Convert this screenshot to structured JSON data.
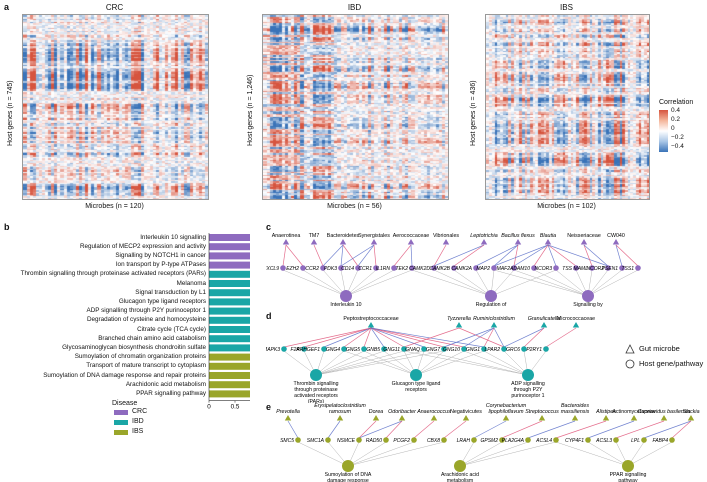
{
  "panel_a": {
    "letter": "a",
    "heatmaps": [
      {
        "title": "CRC",
        "ylabel": "Host genes (n = 745)",
        "xlabel": "Microbes (n = 120)",
        "seed": 11
      },
      {
        "title": "IBD",
        "ylabel": "Host genes (n = 1,246)",
        "xlabel": "Microbes (n = 56)",
        "seed": 29
      },
      {
        "title": "IBS",
        "ylabel": "Host genes (n = 436)",
        "xlabel": "Microbes (n = 102)",
        "seed": 47
      }
    ],
    "legend": {
      "title": "Correlation",
      "ticks": [
        "0.4",
        "0.2",
        "0",
        "−0.2",
        "−0.4"
      ]
    }
  },
  "panel_b": {
    "letter": "b",
    "chart_data": {
      "type": "bar",
      "orientation": "horizontal",
      "xlabel": "−log10(q-value)",
      "xticks": [
        "0",
        "0.5",
        "1.0",
        "1.5"
      ],
      "xlim": [
        0,
        1.75
      ],
      "categories": [
        "Interleukin 10 signalling",
        "Regulation of MECP2 expression and activity",
        "Signalling by NOTCH1 in cancer",
        "Ion transport by P-type ATPases",
        "Thrombin signalling through proteinase activated receptors (PARs)",
        "Melanoma",
        "Signal transduction by L1",
        "Glucagon type ligand receptors",
        "ADP signalling through P2Y purinoceptor 1",
        "Degradation of cysteine and homocysteine",
        "Citrate cycle (TCA cycle)",
        "Branched chain amino acid catabolism",
        "Glycosaminoglycan biosynthesis chondroitin sulfate",
        "Sumoylation of chromatin organization proteins",
        "Transport of mature transcript to cytoplasm",
        "Sumoylation of DNA damage response and repair proteins",
        "Arachidonic acid metabolism",
        "PPAR signalling pathway"
      ],
      "values": [
        1.45,
        1.45,
        1.45,
        1.45,
        1.6,
        1.4,
        1.35,
        1.35,
        1.35,
        1.35,
        1.35,
        1.35,
        1.35,
        1.75,
        1.65,
        1.6,
        1.6,
        1.55
      ],
      "groups": [
        "CRC",
        "CRC",
        "CRC",
        "CRC",
        "IBD",
        "IBD",
        "IBD",
        "IBD",
        "IBD",
        "IBD",
        "IBD",
        "IBD",
        "IBD",
        "IBS",
        "IBS",
        "IBS",
        "IBS",
        "IBS"
      ],
      "legend": {
        "title": "Disease",
        "entries": [
          "CRC",
          "IBD",
          "IBS"
        ],
        "colors": [
          "#8e6bbf",
          "#1aa6a6",
          "#9aa62a"
        ]
      }
    }
  },
  "panel_c": {
    "letter": "c",
    "microbes": [
      "Anaerotinea",
      "TM7",
      "Bacteroidetes",
      "Synergistales",
      "Aerococcaceae",
      "Vibrionales",
      "Leptotrichia",
      "Bacillus flexus",
      "Blautia",
      "Neisseriaceae",
      "CW040"
    ],
    "genes": [
      "CXCL9",
      "EZH2",
      "CCR2",
      "PDK3",
      "CD14",
      "CCR1",
      "IL1RN",
      "TEK2",
      "CAMK2D",
      "CAMK2B",
      "CAMK2A",
      "MAP2",
      "MAF2",
      "ADAM10",
      "NCOR2",
      "TBS",
      "PSEN1",
      "MAML",
      "NCOR2b",
      "TSS1"
    ],
    "gene_labels": [
      "CXCL9",
      "EZH2",
      "CCR2",
      "PDK3",
      "CD14",
      "CCR1",
      "IL1RN",
      "TEK2",
      "CAMK2D",
      "CAMK2B",
      "CAMK2A",
      "MAP2",
      "MAF2",
      "ADAM10",
      "NCOR3",
      "TSS",
      "MAML",
      "NCOR2",
      "PSEN1",
      "TSS1"
    ],
    "pathways": [
      "Interleukin 10 signalling",
      "Regulation of MECP2 expression and activity",
      "Signalling by NOTCH1 in cancer"
    ]
  },
  "panel_d": {
    "letter": "d",
    "microbes": [
      "Peptostreptococcaceae",
      "Tyzzerella",
      "Ruminiclostridium",
      "Granulicatella",
      "Micrococcaceae"
    ],
    "genes": [
      "MAPK3",
      "F2R",
      "ARHGEF1",
      "GNG4",
      "GNG5",
      "GNB5",
      "GNG11",
      "GNAQ",
      "GNG7",
      "GNG10",
      "GNG1",
      "LPAR2",
      "GRC6",
      "P2RY1"
    ],
    "pathways": [
      "Thrombin signalling through proteinase activated receptors (PARs)",
      "Glucagon type ligand receptors",
      "ADP signalling through P2Y purinoceptor 1"
    ],
    "shape_legend": [
      {
        "symbol": "triangle",
        "label": "Gut microbe"
      },
      {
        "symbol": "circle",
        "label": "Host gene/pathway"
      }
    ]
  },
  "panel_e": {
    "letter": "e",
    "microbes": [
      "Prevotella",
      "Erysipelatoclostridium ramosum",
      "Dorea",
      "Odoribacter",
      "Anaerococcus",
      "Negativicutes",
      "Corynebacterium lipophiloflavum",
      "Streptococcus",
      "Bacteroides massiliensis",
      "Alistipes",
      "Actinomycetaceae",
      "Cupriavidus basilensis",
      "Slackia"
    ],
    "genes": [
      "SMC5",
      "SMC1A",
      "NSMCE",
      "RAD50",
      "PCGF2",
      "CBX8",
      "LRAH",
      "GPSM2",
      "PLA2G4A",
      "ACSL4",
      "CYP4F1",
      "ACSL3",
      "LPL",
      "FABP4"
    ],
    "pathways": [
      "Sumoylation of DNA damage response and repair proteins",
      "Arachidonic acid metabolism",
      "PPAR signalling pathway"
    ]
  },
  "colors": {
    "crc": "#8e6bbf",
    "ibd": "#1aa6a6",
    "ibs": "#9aa62a",
    "pos_edge": "#e0557a",
    "neg_edge": "#5a6ec8",
    "grey_edge": "#b5b5b5"
  }
}
